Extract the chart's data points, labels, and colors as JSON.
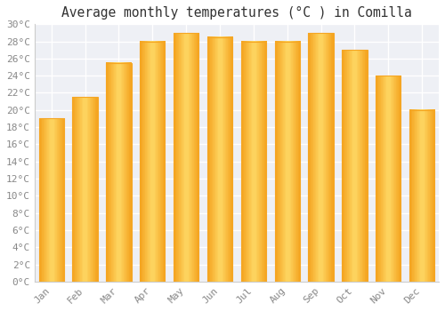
{
  "title": "Average monthly temperatures (°C ) in Comilla",
  "months": [
    "Jan",
    "Feb",
    "Mar",
    "Apr",
    "May",
    "Jun",
    "Jul",
    "Aug",
    "Sep",
    "Oct",
    "Nov",
    "Dec"
  ],
  "values": [
    19,
    21.5,
    25.5,
    28,
    29,
    28.5,
    28,
    28,
    29,
    27,
    24,
    20
  ],
  "bar_color_center": "#FFD966",
  "bar_color_edge": "#F5A623",
  "background_color": "#FFFFFF",
  "plot_bg_color": "#EEF0F5",
  "grid_color": "#FFFFFF",
  "ylim": [
    0,
    30
  ],
  "ytick_step": 2,
  "title_fontsize": 10.5,
  "tick_fontsize": 8,
  "tick_color": "#888888",
  "title_color": "#333333"
}
